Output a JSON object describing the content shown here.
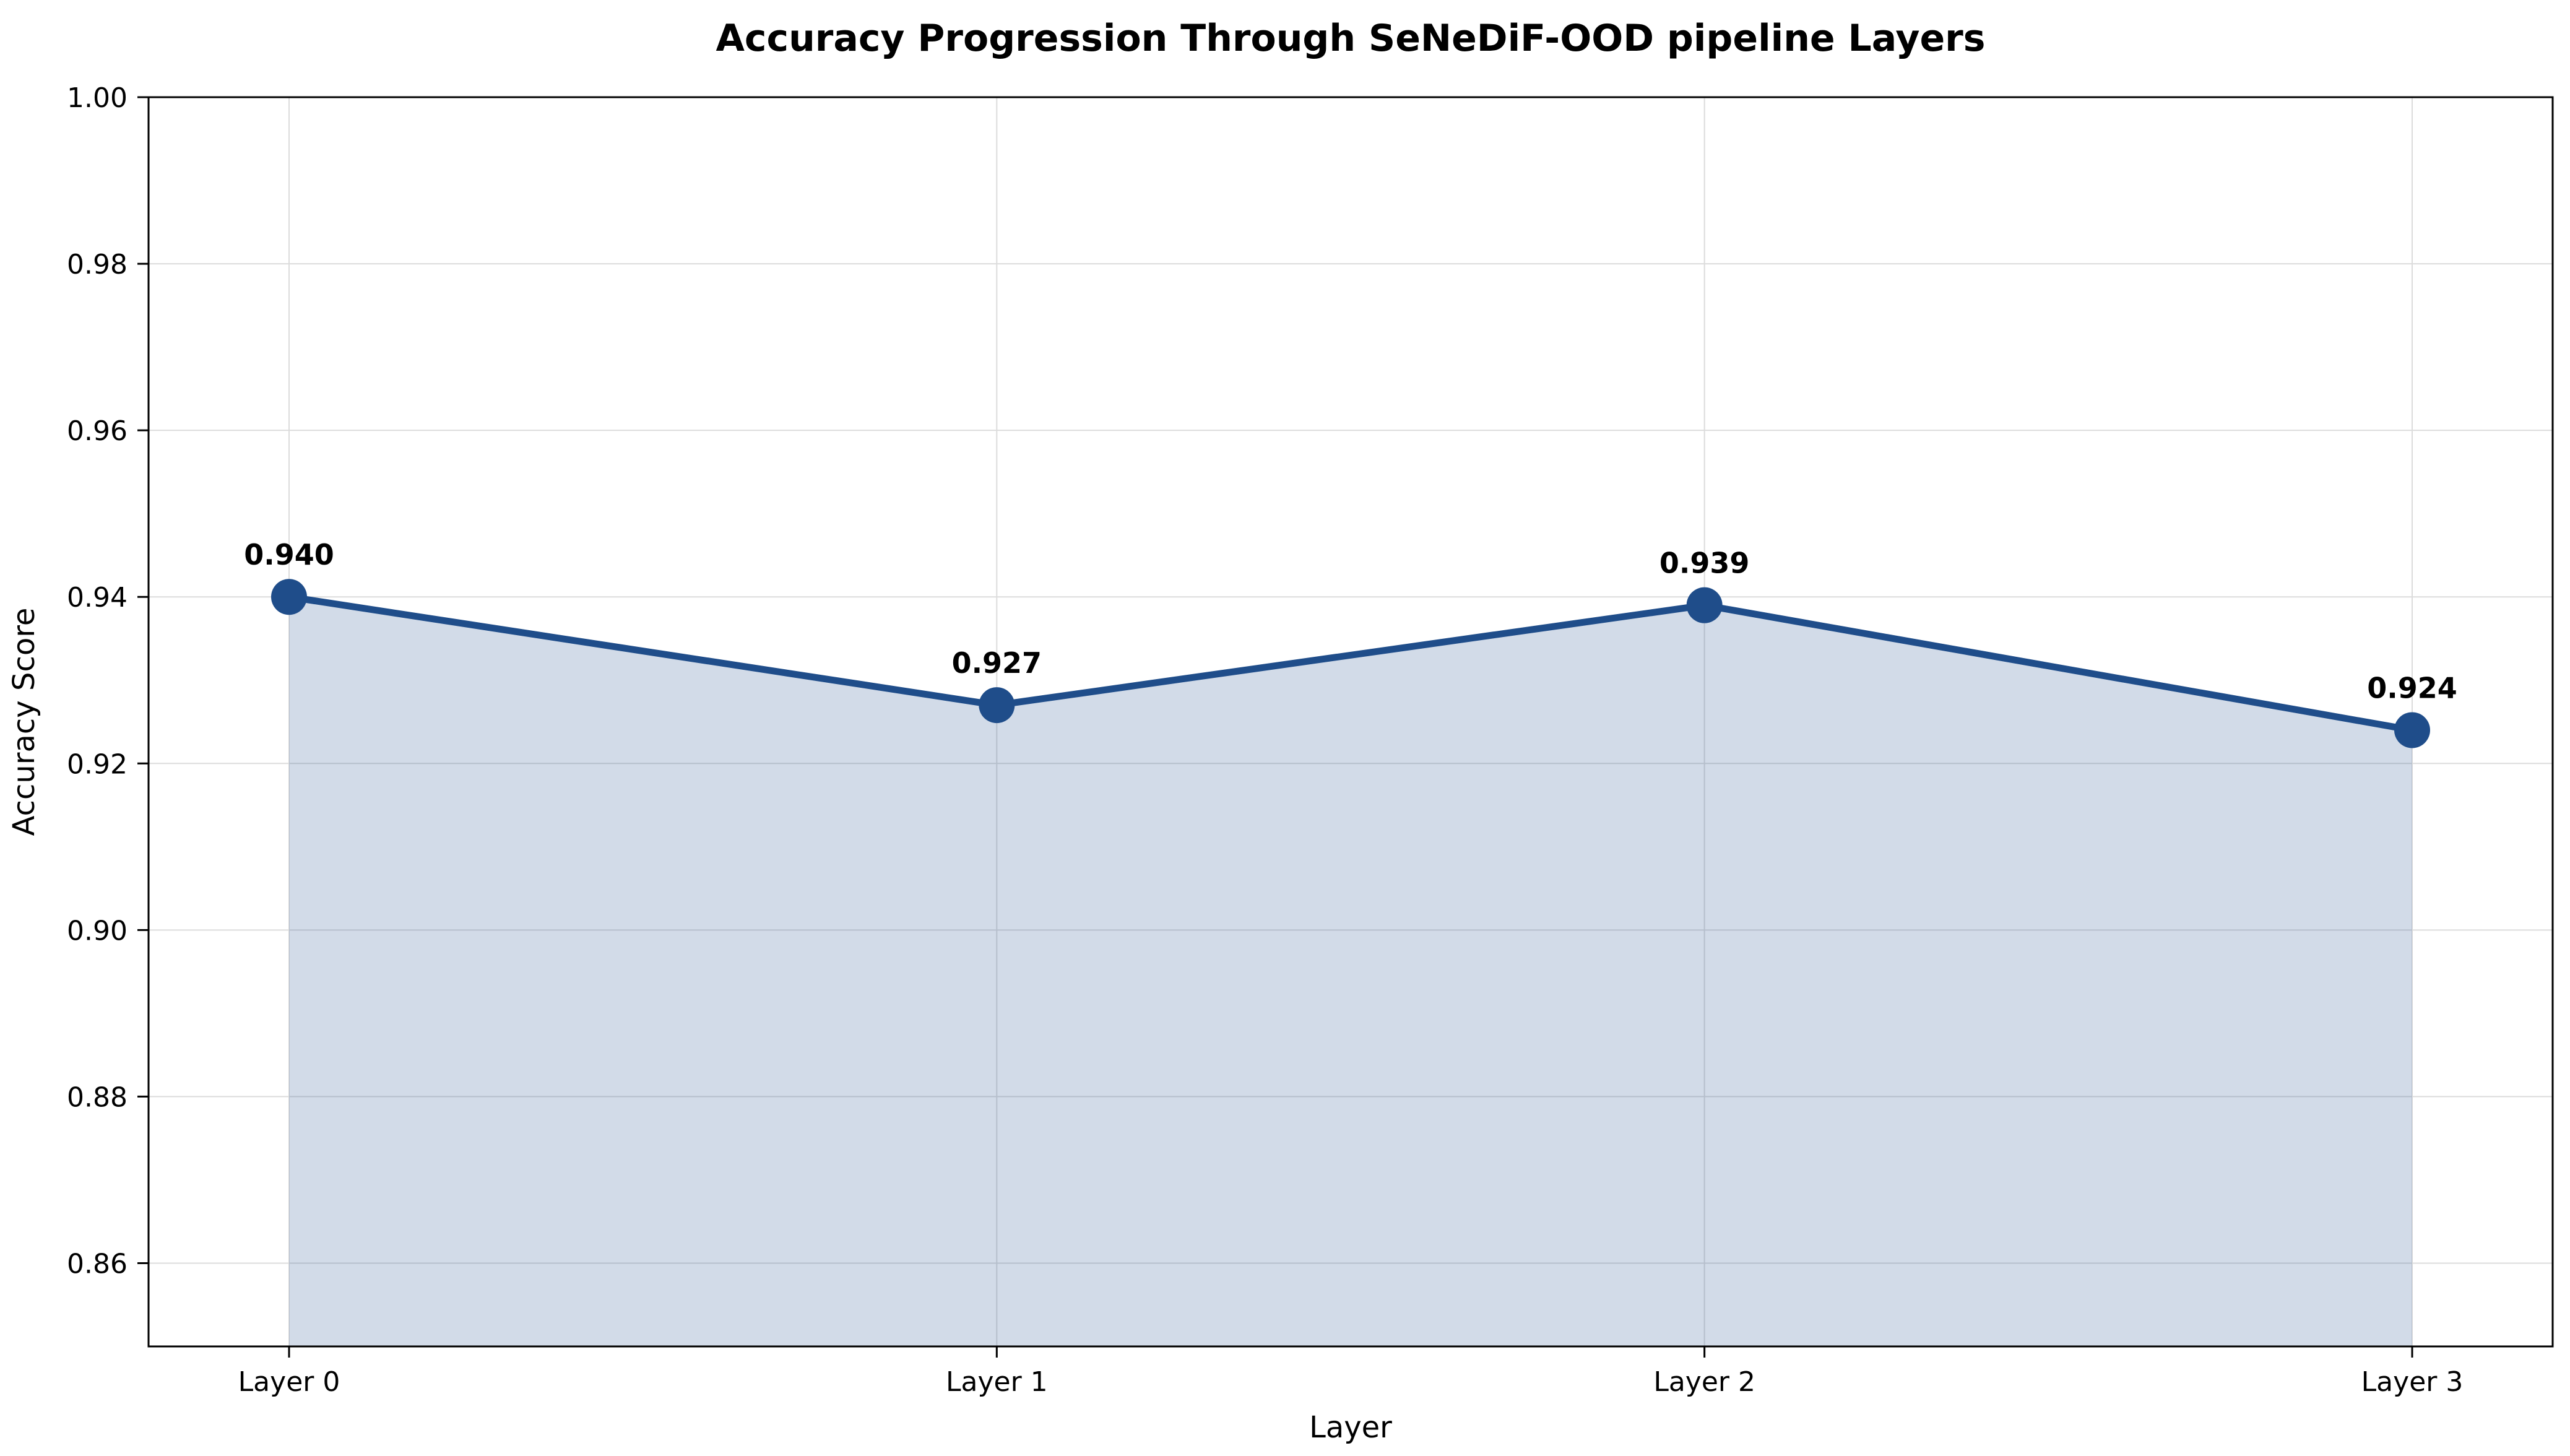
{
  "chart_data": {
    "type": "line",
    "title": "Accuracy Progression Through SeNeDiF-OOD pipeline Layers",
    "xlabel": "Layer",
    "ylabel": "Accuracy Score",
    "categories": [
      "Layer 0",
      "Layer 1",
      "Layer 2",
      "Layer 3"
    ],
    "values": [
      0.94,
      0.927,
      0.939,
      0.924
    ],
    "point_labels": [
      "0.940",
      "0.927",
      "0.939",
      "0.924"
    ],
    "ylim": [
      0.85,
      1.0
    ],
    "yticks": [
      0.86,
      0.88,
      0.9,
      0.92,
      0.94,
      0.96,
      0.98,
      1.0
    ],
    "ytick_labels": [
      "0.86",
      "0.88",
      "0.90",
      "0.92",
      "0.94",
      "0.96",
      "0.98",
      "1.00"
    ],
    "grid": true,
    "legend": "none",
    "area_fill": true,
    "colors": {
      "line": "#1f4d8a",
      "marker": "#1f4d8a",
      "fill": "rgba(31,77,138,0.2)",
      "grid": "#dcdcdc",
      "axis": "#000000",
      "text": "#000000",
      "background": "#ffffff"
    }
  }
}
